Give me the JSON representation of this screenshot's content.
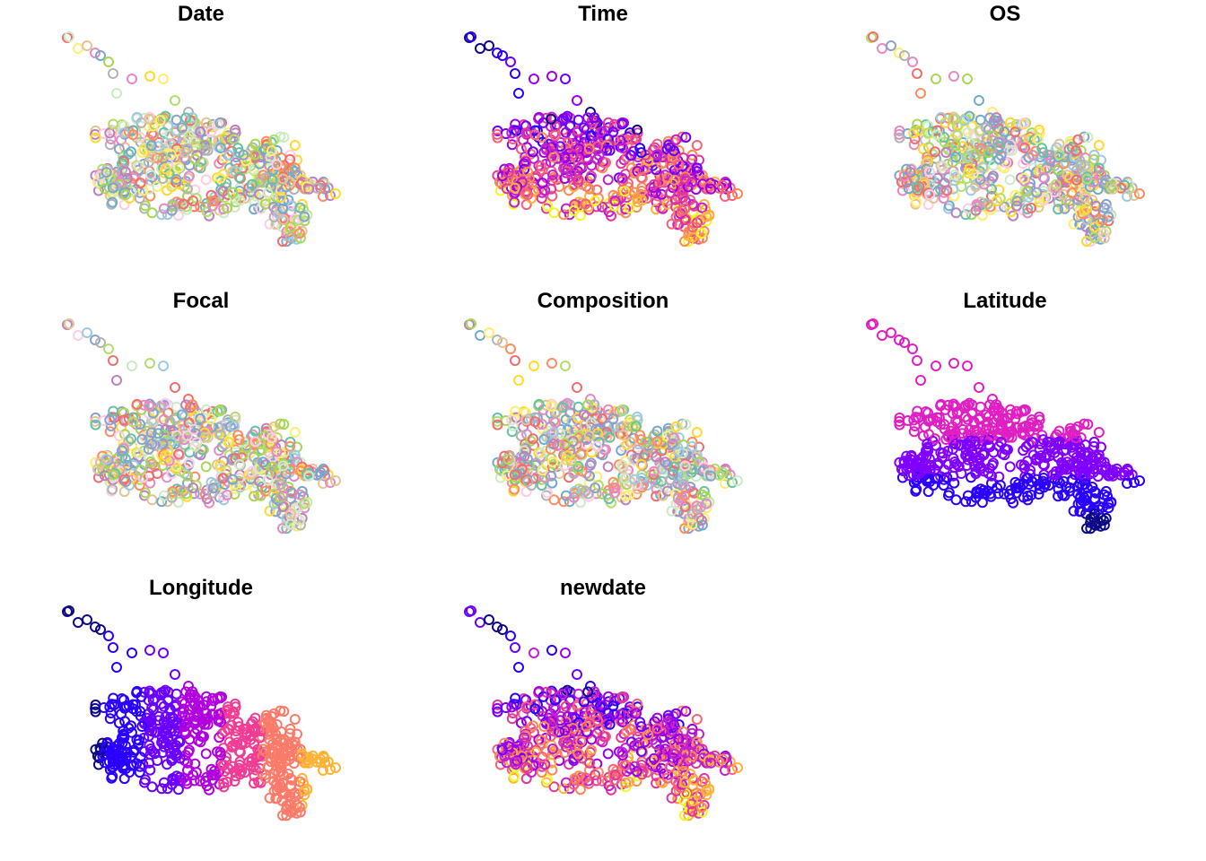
{
  "chart_data": [
    {
      "type": "scatter",
      "title": "Date",
      "scheme": "qualitative",
      "xlabel": "",
      "ylabel": "",
      "legend": "none",
      "grid": false
    },
    {
      "type": "scatter",
      "title": "Time",
      "scheme": "plasma",
      "xlabel": "",
      "ylabel": "",
      "legend": "none",
      "grid": false
    },
    {
      "type": "scatter",
      "title": "OS",
      "scheme": "qualitative",
      "xlabel": "",
      "ylabel": "",
      "legend": "none",
      "grid": false
    },
    {
      "type": "scatter",
      "title": "Focal",
      "scheme": "qualitative",
      "xlabel": "",
      "ylabel": "",
      "legend": "none",
      "grid": false
    },
    {
      "type": "scatter",
      "title": "Composition",
      "scheme": "qualitative",
      "xlabel": "",
      "ylabel": "",
      "legend": "none",
      "grid": false
    },
    {
      "type": "scatter",
      "title": "Latitude",
      "scheme": "latitude-bands",
      "xlabel": "",
      "ylabel": "",
      "legend": "none",
      "grid": false
    },
    {
      "type": "scatter",
      "title": "Longitude",
      "scheme": "longitude-bands",
      "xlabel": "",
      "ylabel": "",
      "legend": "none",
      "grid": false
    },
    {
      "type": "scatter",
      "title": "newdate",
      "scheme": "plasma",
      "xlabel": "",
      "ylabel": "",
      "legend": "none",
      "grid": false
    }
  ],
  "palettes": {
    "qualitative": [
      "#66c2a5",
      "#fc8d62",
      "#8da0cb",
      "#e78ac3",
      "#a6d854",
      "#ffd92f",
      "#e5c494",
      "#b3b3b3",
      "#f46d6d",
      "#72aacf",
      "#b3de69",
      "#bc80bd",
      "#ccebc5",
      "#ffed6f",
      "#fccde5",
      "#9ecae1"
    ],
    "plasma": [
      "#0d0887",
      "#2a00ff",
      "#6a00ff",
      "#9c00e8",
      "#c21fcf",
      "#e0399b",
      "#f5627a",
      "#fb8a56",
      "#fdb338",
      "#f0f921"
    ],
    "latitude_bands": [
      "#e01fc2",
      "#8000ff",
      "#2a00ff",
      "#0d0887"
    ],
    "longitude_bands": [
      "#0d0887",
      "#2a00ff",
      "#6a00ff",
      "#b000dd",
      "#f03c94",
      "#fa7b6a",
      "#fdb338"
    ]
  }
}
